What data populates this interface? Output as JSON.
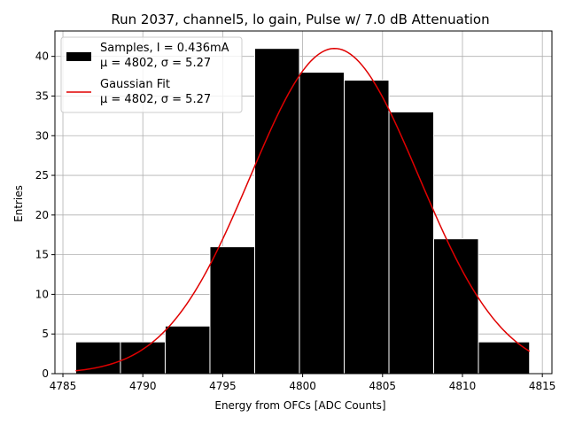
{
  "chart_data": {
    "type": "bar",
    "title": "Run 2037, channel5, lo gain, Pulse w/ 7.0 dB Attenuation",
    "xlabel": "Energy from OFCs [ADC Counts]",
    "ylabel": "Entries",
    "xlim": [
      4784.5,
      4815.6
    ],
    "ylim": [
      0,
      43.2
    ],
    "xticks": [
      4785,
      4790,
      4795,
      4800,
      4805,
      4810,
      4815
    ],
    "yticks": [
      0,
      5,
      10,
      15,
      20,
      25,
      30,
      35,
      40
    ],
    "grid": true,
    "legend_position": "top-left",
    "histogram": {
      "name": "Samples, I = 0.436mA",
      "stats_label": "μ = 4802, σ = 5.27",
      "bin_edges": [
        4785.8,
        4788.6,
        4791.4,
        4794.2,
        4797.0,
        4799.8,
        4802.6,
        4805.4,
        4808.2,
        4811.0,
        4814.2
      ],
      "counts": [
        4,
        4,
        6,
        16,
        41,
        38,
        37,
        33,
        17,
        4
      ],
      "color": "#000000",
      "edge_color": "#ffffff"
    },
    "fit": {
      "name": "Gaussian Fit",
      "stats_label": "μ = 4802, σ = 5.27",
      "type": "gaussian",
      "mu": 4802.0,
      "sigma": 5.27,
      "amplitude": 41.0,
      "x_range": [
        4785.8,
        4814.2
      ],
      "color": "#e00000"
    }
  }
}
